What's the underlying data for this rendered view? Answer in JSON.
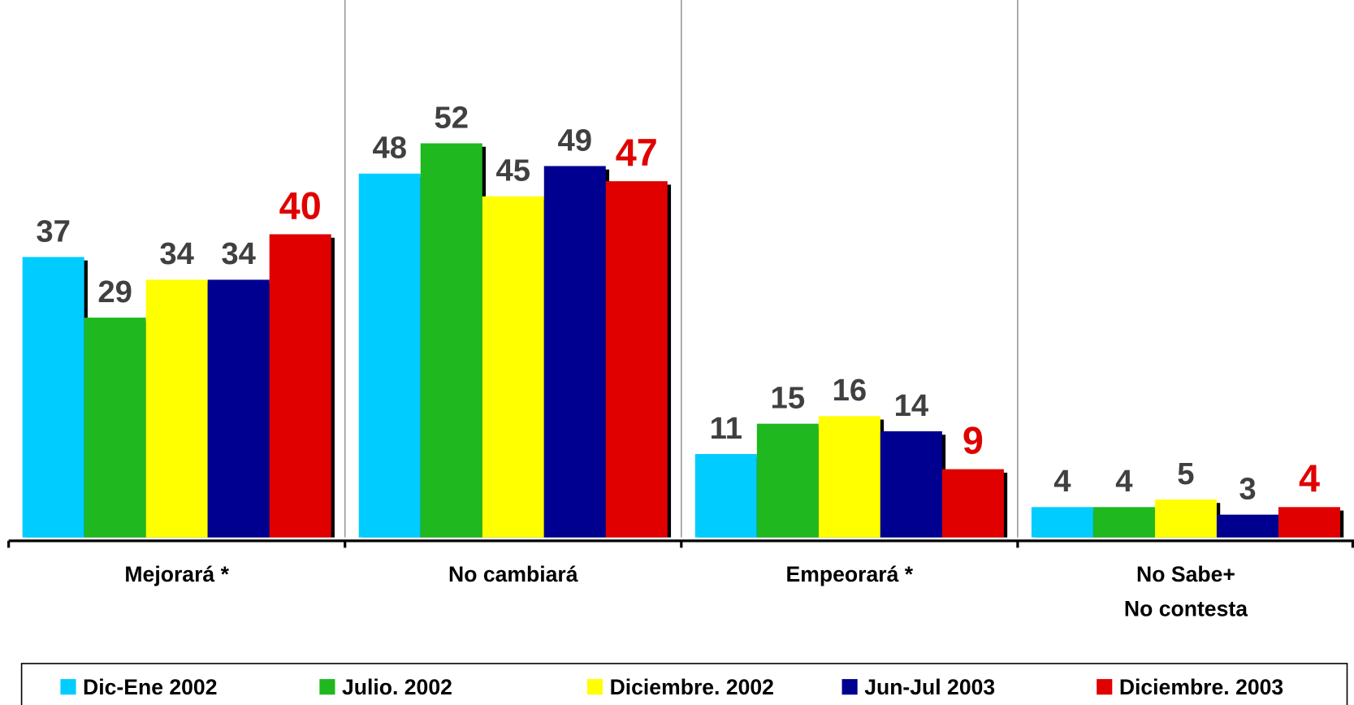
{
  "chart_data": {
    "type": "bar",
    "categories": [
      "Mejorará *",
      "No cambiará",
      "Empeorará *",
      "No Sabe+\nNo contesta"
    ],
    "series": [
      {
        "name": "Dic-Ene 2002",
        "color": "#00ccff",
        "label_color": "#404040",
        "values": [
          37,
          48,
          11,
          4
        ]
      },
      {
        "name": "Julio. 2002",
        "color": "#1fb81f",
        "label_color": "#404040",
        "values": [
          29,
          52,
          15,
          4
        ]
      },
      {
        "name": "Diciembre. 2002",
        "color": "#ffff00",
        "label_color": "#404040",
        "values": [
          34,
          45,
          16,
          5
        ]
      },
      {
        "name": "Jun-Jul 2003",
        "color": "#000090",
        "label_color": "#404040",
        "values": [
          34,
          49,
          14,
          3
        ]
      },
      {
        "name": "Diciembre. 2003",
        "color": "#e00000",
        "label_color": "#e00000",
        "values": [
          40,
          47,
          9,
          4
        ]
      }
    ],
    "ylim": [
      0,
      70
    ],
    "legend": "bottom"
  }
}
